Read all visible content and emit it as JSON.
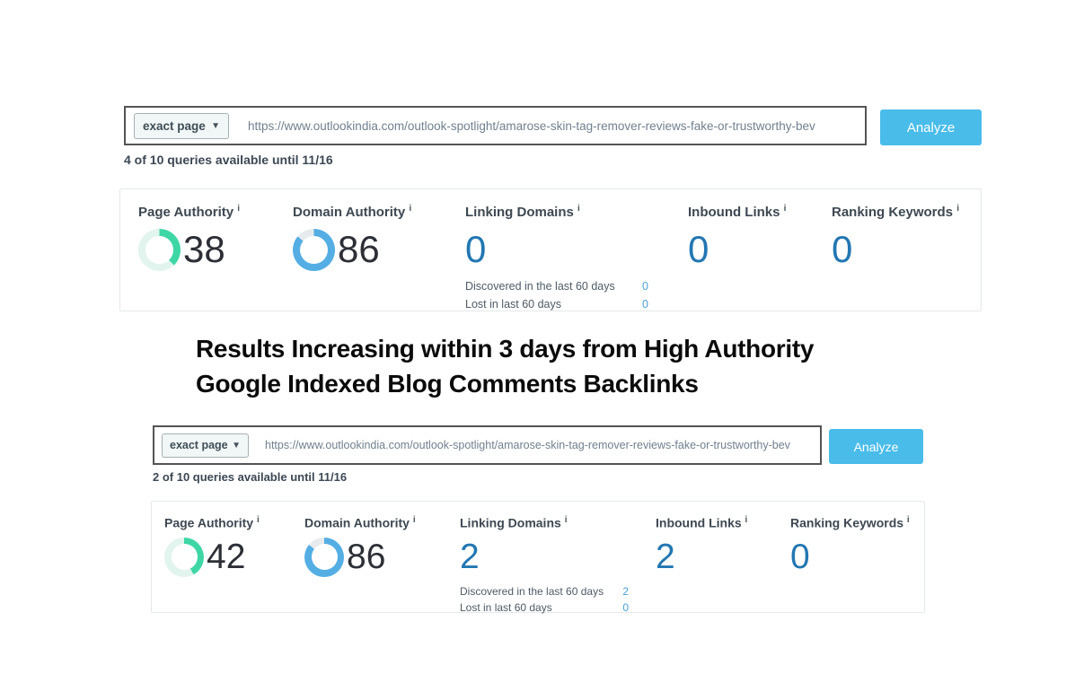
{
  "colors": {
    "accent_blue": "#49bce9",
    "metric_blue": "#2277b2",
    "small_value_blue": "#4aa0d8",
    "ring_teal": "#3fd6a6",
    "ring_teal_track": "#e2f4ee",
    "ring_blue": "#54aee4",
    "ring_blue_track": "#e7ebed",
    "dark_number": "#2c2f36"
  },
  "heading": {
    "line1": "Results Increasing within 3 days from High Authority",
    "line2": "Google Indexed Blog Comments Backlinks"
  },
  "info_sup": "i",
  "sections": [
    {
      "search": {
        "scope_label": "exact page",
        "caret": "▼",
        "url": "https://www.outlookindia.com/outlook-spotlight/amarose-skin-tag-remover-reviews-fake-or-trustworthy-bev",
        "analyze_label": "Analyze",
        "queries_note": "4 of 10 queries available until 11/16"
      },
      "metrics": {
        "page_authority": {
          "label": "Page Authority",
          "value": "38",
          "pct": 38
        },
        "domain_authority": {
          "label": "Domain Authority",
          "value": "86",
          "pct": 86
        },
        "linking_domains": {
          "label": "Linking Domains",
          "value": "0",
          "discovered_label": "Discovered in the last 60 days",
          "discovered": "0",
          "lost_label": "Lost in last 60 days",
          "lost": "0"
        },
        "inbound_links": {
          "label": "Inbound Links",
          "value": "0"
        },
        "ranking_keywords": {
          "label": "Ranking Keywords",
          "value": "0"
        }
      }
    },
    {
      "search": {
        "scope_label": "exact page",
        "caret": "▼",
        "url": "https://www.outlookindia.com/outlook-spotlight/amarose-skin-tag-remover-reviews-fake-or-trustworthy-bev",
        "analyze_label": "Analyze",
        "queries_note": "2 of 10 queries available until 11/16"
      },
      "metrics": {
        "page_authority": {
          "label": "Page Authority",
          "value": "42",
          "pct": 42
        },
        "domain_authority": {
          "label": "Domain Authority",
          "value": "86",
          "pct": 86
        },
        "linking_domains": {
          "label": "Linking Domains",
          "value": "2",
          "discovered_label": "Discovered in the last 60 days",
          "discovered": "2",
          "lost_label": "Lost in last 60 days",
          "lost": "0"
        },
        "inbound_links": {
          "label": "Inbound Links",
          "value": "2"
        },
        "ranking_keywords": {
          "label": "Ranking Keywords",
          "value": "0"
        }
      }
    }
  ]
}
